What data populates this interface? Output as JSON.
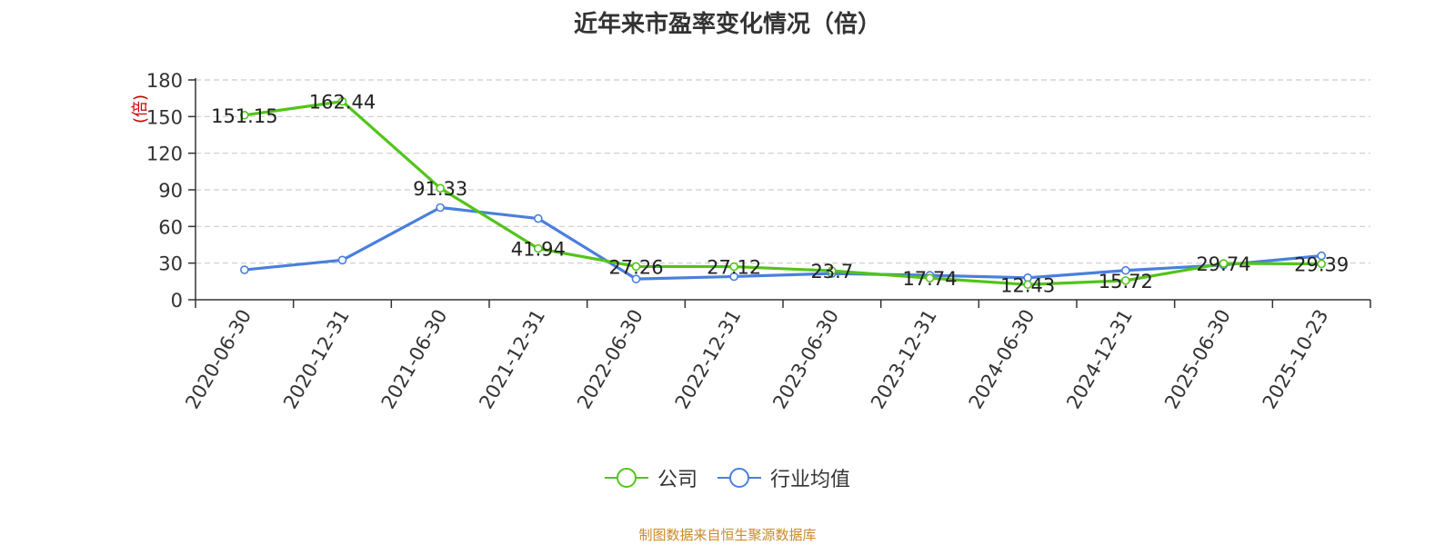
{
  "chart_data": {
    "type": "line",
    "title": "近年来市盈率变化情况（倍）",
    "ylabel": "(倍)",
    "xlabel": "",
    "categories": [
      "2020-06-30",
      "2020-12-31",
      "2021-06-30",
      "2021-12-31",
      "2022-06-30",
      "2022-12-31",
      "2023-06-30",
      "2023-12-31",
      "2024-06-30",
      "2024-12-31",
      "2025-06-30",
      "2025-10-23"
    ],
    "ylim": [
      0,
      180
    ],
    "yticks": [
      0,
      30,
      60,
      90,
      120,
      150,
      180
    ],
    "grid": "horizontal dashed",
    "legend_placement": "bottom-center",
    "series": [
      {
        "name": "公司",
        "color": "#52c41a",
        "values": [
          151.15,
          162.44,
          91.33,
          41.94,
          27.26,
          27.12,
          23.7,
          17.74,
          12.43,
          15.72,
          29.74,
          29.39
        ],
        "labels": [
          "151.15",
          "162.44",
          "91.33",
          "41.94",
          "27.26",
          "27.12",
          "23.7",
          "17.74",
          "12.43",
          "15.72",
          "29.74",
          "29.39"
        ]
      },
      {
        "name": "行业均值",
        "color": "#4a7fdc",
        "values": [
          24.5,
          32.5,
          75.5,
          66.5,
          17.0,
          19.0,
          21.5,
          20.0,
          18.0,
          24.0,
          28.5,
          36.0
        ]
      }
    ]
  },
  "footer": {
    "source": "制图数据来自恒生聚源数据库"
  },
  "colors": {
    "axis": "#333333",
    "grid": "#cccccc",
    "ylabel": "#d00000",
    "source": "#c98a2b"
  }
}
